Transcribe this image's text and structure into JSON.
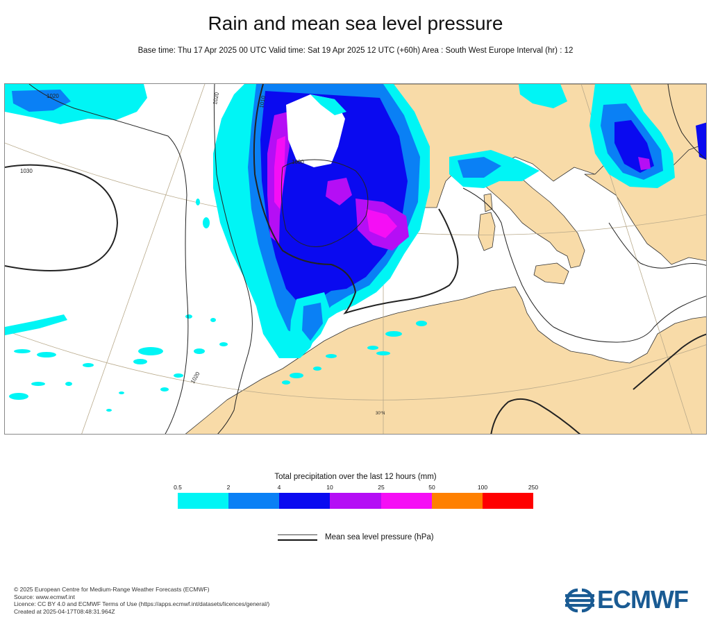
{
  "title": "Rain and mean sea level pressure",
  "subtitle": "Base time: Thu 17 Apr 2025 00 UTC Valid time: Sat 19 Apr 2025 12 UTC (+60h) Area : South West Europe Interval (hr) : 12",
  "map": {
    "isobar_labels": [
      "1020",
      "1020",
      "1030",
      "1010",
      "1000",
      "1020"
    ],
    "latitude_label": "30°N",
    "colors": {
      "land": "#f8dba8",
      "sea": "#ffffff",
      "coastline": "#333333",
      "isobar": "#222222",
      "graticule": "#b8a98a"
    }
  },
  "legend": {
    "title": "Total precipitation over the last 12 hours (mm)",
    "ticks": [
      "0.5",
      "2",
      "4",
      "10",
      "25",
      "50",
      "100",
      "250"
    ],
    "colors": [
      "#00f5f5",
      "#0a80f5",
      "#0a0af0",
      "#b50ef5",
      "#f50ef5",
      "#ff8000",
      "#ff0000"
    ]
  },
  "mslp_legend": {
    "label": "Mean sea level pressure (hPa)"
  },
  "credits": {
    "line1": "© 2025 European Centre for Medium-Range Weather Forecasts (ECMWF)",
    "line2": "Source: www.ecmwf.int",
    "line3": "Licence: CC BY 4.0 and ECMWF Terms of Use (https://apps.ecmwf.int/datasets/licences/general/)",
    "line4": "Created at 2025-04-17T08:48:31.964Z"
  },
  "logo": {
    "text": "ECMWF",
    "color": "#1a5b93"
  }
}
